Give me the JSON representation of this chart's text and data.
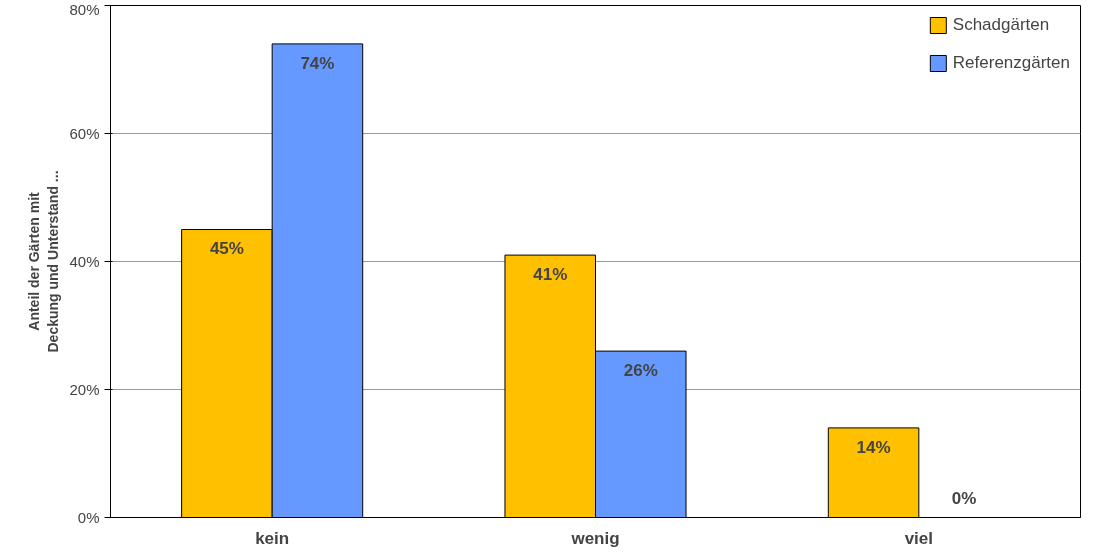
{
  "chart_data": {
    "type": "bar",
    "ylabel": "Anteil der Gärten mit\nDeckung und Unterstand ...",
    "categories": [
      "kein",
      "wenig",
      "viel"
    ],
    "series": [
      {
        "name": "Schadgärten",
        "color": "#ffc000",
        "values": [
          45,
          41,
          14
        ],
        "value_labels": [
          "45%",
          "41%",
          "14%"
        ]
      },
      {
        "name": "Referenzgärten",
        "color": "#6699ff",
        "values": [
          74,
          26,
          0
        ],
        "value_labels": [
          "74%",
          "26%",
          "0%"
        ]
      }
    ],
    "ylim": [
      0,
      80
    ],
    "yticks": [
      {
        "value": 0,
        "label": "0%"
      },
      {
        "value": 20,
        "label": "20%"
      },
      {
        "value": 40,
        "label": "40%"
      },
      {
        "value": 60,
        "label": "60%"
      },
      {
        "value": 80,
        "label": "80%"
      }
    ],
    "grid": "y",
    "legend": "top right"
  }
}
